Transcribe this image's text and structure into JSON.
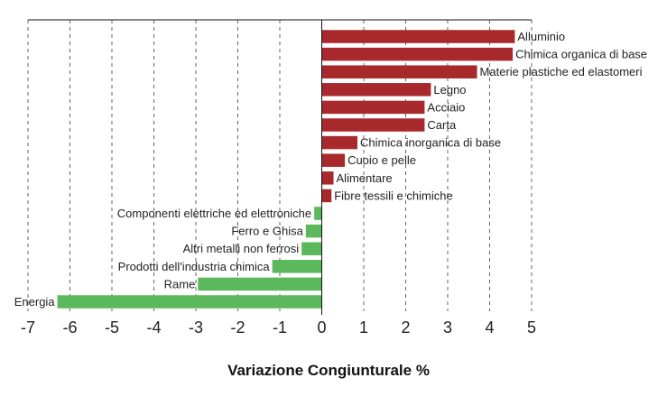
{
  "chart_data": {
    "type": "bar",
    "orientation": "horizontal",
    "xlabel": "Variazione Congiunturale %",
    "xlim": [
      -7,
      5
    ],
    "xticks": [
      -7,
      -6,
      -5,
      -4,
      -3,
      -2,
      -1,
      0,
      1,
      2,
      3,
      4,
      5
    ],
    "xtick_labels": [
      "-7",
      "-6",
      "-5",
      "-4",
      "-3",
      "-2",
      "-1",
      "0",
      "1",
      "2",
      "3",
      "4",
      "5"
    ],
    "grid": "vertical-dashed",
    "categories": [
      "Alluminio",
      "Chimica organica di base",
      "Materie plastiche ed elastomeri",
      "Legno",
      "Acciaio",
      "Carta",
      "Chimica inorganica di base",
      "Cuoio e pelle",
      "Alimentare",
      "Fibre tessili e chimiche",
      "Componenti elettriche ed elettroniche",
      "Ferro e Ghisa",
      "Altri metalli non ferrosi",
      "Prodotti dell'industria chimica",
      "Rame",
      "Energia"
    ],
    "values": [
      4.6,
      4.55,
      3.7,
      2.6,
      2.45,
      2.45,
      0.85,
      0.55,
      0.28,
      0.23,
      -0.18,
      -0.38,
      -0.48,
      -1.18,
      -2.95,
      -6.3
    ],
    "colors": {
      "positive": "#a8292b",
      "negative": "#5cb85c",
      "grid": "#555555",
      "axis": "#111111"
    }
  }
}
